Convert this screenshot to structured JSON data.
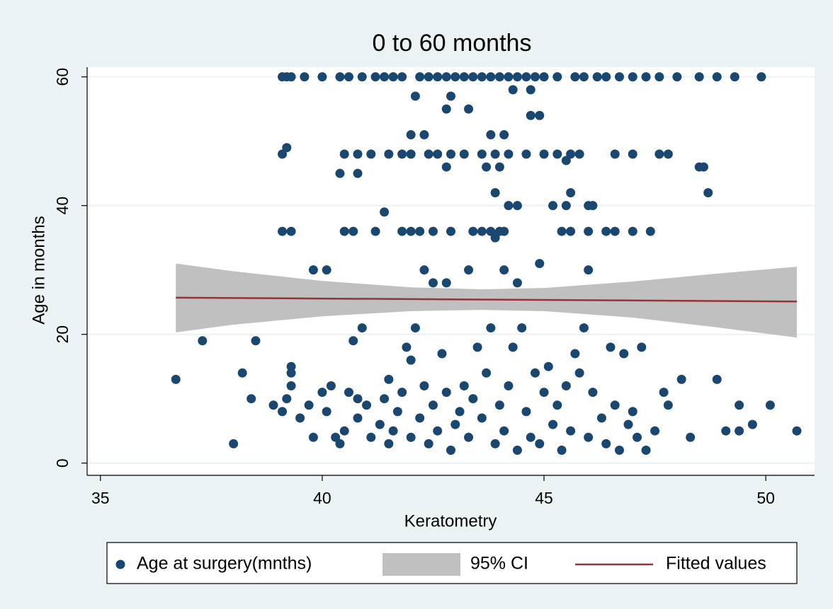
{
  "chart_data": {
    "type": "scatter",
    "title": "0 to 60 months",
    "x_label": "Keratometry",
    "y_label": "Age in months",
    "xlim": [
      34.7,
      51.1
    ],
    "ylim": [
      -1.9,
      61.5
    ],
    "xticks": [
      35,
      40,
      45,
      50
    ],
    "yticks": [
      0,
      20,
      40,
      60
    ],
    "grid": true,
    "legend": "bottom",
    "series": [
      {
        "name": "Age at surgery(mnths)",
        "kind": "scatter",
        "color": "#1a476f",
        "x": [
          39.1,
          39.2,
          39.3,
          39.6,
          40,
          40.4,
          40.6,
          40.9,
          41.2,
          41.4,
          41.6,
          41.8,
          42.2,
          42.4,
          42.6,
          42.8,
          43,
          43.2,
          43.4,
          43.6,
          43.8,
          44,
          44.2,
          44.4,
          44.6,
          44.8,
          45,
          45.3,
          45.7,
          45.9,
          46.2,
          46.4,
          46.7,
          47,
          47.3,
          47.6,
          48,
          48.5,
          48.9,
          49.3,
          49.9,
          42.1,
          42.9,
          44.3,
          44.7,
          42.8,
          43.3,
          44.7,
          44.9,
          42.0,
          42.3,
          43.8,
          44.1,
          39.2,
          39.1,
          40.5,
          40.8,
          41.1,
          41.5,
          41.8,
          42,
          42.4,
          42.6,
          42.9,
          43.2,
          43.6,
          43.9,
          44.2,
          44.6,
          45,
          45.3,
          45.6,
          45.8,
          46.6,
          47,
          47.6,
          47.8,
          48.5,
          48.6,
          48.7,
          40.4,
          40.8,
          42.8,
          43.7,
          44.0,
          45.5,
          43.9,
          45.6,
          44.2,
          44.4,
          45.2,
          45.5,
          46,
          46.1,
          41.4,
          39.1,
          39.3,
          40.5,
          40.7,
          41.2,
          41.8,
          42,
          42.2,
          42.5,
          42.9,
          43.4,
          43.6,
          43.8,
          44,
          44.1,
          45.4,
          45.6,
          46,
          46.4,
          46.6,
          47,
          47.4,
          43.9,
          39.8,
          40.1,
          42.3,
          42.5,
          42.8,
          43.3,
          44.1,
          44.4,
          44.9,
          46,
          37.3,
          38.5,
          36.7,
          38.2,
          38.4,
          38.0,
          38.9,
          39.1,
          39.2,
          39.3,
          39.3,
          39.3,
          39.5,
          39.7,
          39.8,
          40,
          40.1,
          40.2,
          40.3,
          40.4,
          40.5,
          40.6,
          40.8,
          40.8,
          40.7,
          40.9,
          41,
          41.1,
          41.3,
          41.4,
          41.5,
          41.5,
          41.6,
          41.7,
          41.8,
          41.9,
          42,
          42,
          42.1,
          42.2,
          42.3,
          42.4,
          42.5,
          42.6,
          42.7,
          42.8,
          42.9,
          43,
          43.1,
          43.2,
          43.3,
          43.4,
          43.5,
          43.6,
          43.7,
          43.8,
          43.9,
          44,
          44.1,
          44.2,
          44.3,
          44.4,
          44.5,
          44.6,
          44.7,
          44.8,
          44.9,
          45,
          45.1,
          45.2,
          45.3,
          45.4,
          45.5,
          45.6,
          45.7,
          45.8,
          45.9,
          46,
          46.1,
          46.3,
          46.4,
          46.5,
          46.6,
          46.7,
          46.8,
          46.9,
          47,
          47.1,
          47.2,
          47.3,
          47.5,
          47.7,
          47.8,
          48.1,
          48.3,
          48.9,
          49.1,
          49.4,
          49.4,
          49.7,
          50.1,
          50.7
        ],
        "values": [
          60,
          60,
          60,
          60,
          60,
          60,
          60,
          60,
          60,
          60,
          60,
          60,
          60,
          60,
          60,
          60,
          60,
          60,
          60,
          60,
          60,
          60,
          60,
          60,
          60,
          60,
          60,
          60,
          60,
          60,
          60,
          60,
          60,
          60,
          60,
          60,
          60,
          60,
          60,
          60,
          60,
          57,
          57,
          58,
          58,
          55,
          55,
          54,
          54,
          51,
          51,
          51,
          51,
          49,
          48,
          48,
          48,
          48,
          48,
          48,
          48,
          48,
          48,
          48,
          48,
          48,
          48,
          48,
          48,
          48,
          48,
          48,
          48,
          48,
          48,
          48,
          48,
          46,
          46,
          42,
          45,
          45,
          46,
          46,
          46,
          47,
          42,
          42,
          40,
          40,
          40,
          40,
          40,
          40,
          39,
          36,
          36,
          36,
          36,
          36,
          36,
          36,
          36,
          36,
          36,
          36,
          36,
          36,
          36,
          36,
          36,
          36,
          36,
          36,
          36,
          36,
          36,
          35,
          30,
          30,
          30,
          28,
          28,
          30,
          30,
          28,
          31,
          30,
          19,
          19,
          13,
          14,
          10,
          3,
          9,
          8,
          10,
          15,
          14,
          12,
          7,
          9,
          4,
          11,
          8,
          12,
          4,
          3,
          5,
          11,
          10,
          7,
          19,
          21,
          9,
          4,
          6,
          10,
          3,
          13,
          5,
          8,
          11,
          18,
          16,
          4,
          21,
          7,
          12,
          3,
          9,
          5,
          17,
          11,
          2,
          6,
          8,
          12,
          4,
          10,
          18,
          7,
          14,
          21,
          3,
          9,
          5,
          12,
          18,
          2,
          21,
          8,
          4,
          14,
          3,
          11,
          15,
          6,
          9,
          2,
          12,
          5,
          17,
          14,
          21,
          4,
          11,
          7,
          3,
          18,
          9,
          2,
          17,
          6,
          8,
          4,
          18,
          2,
          5,
          11,
          9,
          13,
          4,
          13,
          5,
          9,
          5,
          6,
          9,
          5
        ]
      },
      {
        "name": "95% CI",
        "kind": "band",
        "color": "#c0c0c0",
        "x": [
          36.7,
          38,
          40,
          42,
          43.6,
          45,
          47,
          49,
          50.7
        ],
        "upper": [
          31,
          29.8,
          28.3,
          27.3,
          27,
          27.2,
          28.2,
          29.5,
          30.5
        ],
        "lower": [
          20.3,
          21.5,
          22.8,
          23.6,
          23.8,
          23.6,
          22.6,
          21,
          19.5
        ]
      },
      {
        "name": "Fitted values",
        "kind": "line",
        "color": "#90353b",
        "x": [
          36.7,
          50.7
        ],
        "values": [
          25.7,
          25.1
        ]
      }
    ]
  }
}
